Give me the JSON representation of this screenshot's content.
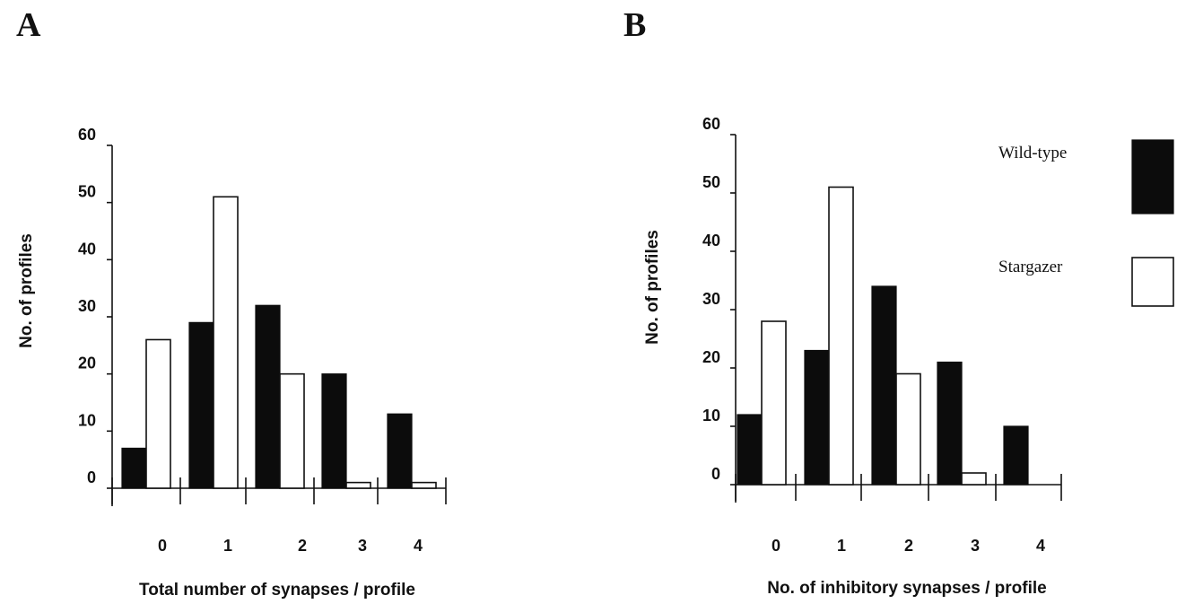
{
  "colors": {
    "wild_type": "#0c0c0c",
    "stargazer": "#ffffff",
    "axis": "#111111"
  },
  "legend": {
    "placement": "top-right",
    "entries": [
      {
        "label": "Wild-type",
        "fill": "black"
      },
      {
        "label": "Stargazer",
        "fill": "white"
      }
    ]
  },
  "chart_data": [
    {
      "panel": "A",
      "type": "bar",
      "title": "",
      "xlabel": "Total number of synapses / profile",
      "ylabel": "No. of profiles",
      "ylim": [
        0,
        60
      ],
      "yticks": [
        0,
        10,
        20,
        30,
        40,
        50,
        60
      ],
      "categories": [
        "0",
        "1",
        "2",
        "3",
        "4"
      ],
      "grid": false,
      "series": [
        {
          "name": "Wild-type",
          "values": [
            7,
            29,
            32,
            20,
            13
          ]
        },
        {
          "name": "Stargazer",
          "values": [
            26,
            51,
            20,
            1,
            1
          ]
        }
      ]
    },
    {
      "panel": "B",
      "type": "bar",
      "title": "",
      "xlabel": "No. of inhibitory synapses / profile",
      "ylabel": "No. of profiles",
      "ylim": [
        0,
        60
      ],
      "yticks": [
        0,
        10,
        20,
        30,
        40,
        50,
        60
      ],
      "categories": [
        "0",
        "1",
        "2",
        "3",
        "4"
      ],
      "grid": false,
      "series": [
        {
          "name": "Wild-type",
          "values": [
            12,
            23,
            34,
            21,
            10
          ]
        },
        {
          "name": "Stargazer",
          "values": [
            28,
            51,
            19,
            2,
            0
          ]
        }
      ]
    }
  ]
}
